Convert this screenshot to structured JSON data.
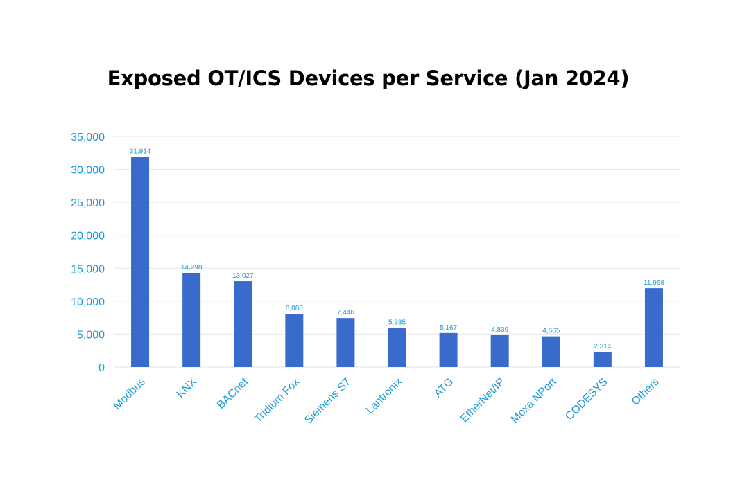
{
  "chart_data": {
    "type": "bar",
    "title": "Exposed OT/ICS Devices per Service (Jan 2024)",
    "xlabel": "",
    "ylabel": "",
    "ylim": [
      0,
      35000
    ],
    "yticks": [
      "0",
      "5,000",
      "10,000",
      "15,000",
      "20,000",
      "25,000",
      "30,000",
      "35,000"
    ],
    "ytick_values": [
      0,
      5000,
      10000,
      15000,
      20000,
      25000,
      30000,
      35000
    ],
    "grid": true,
    "categories": [
      "Modbus",
      "KNX",
      "BACnet",
      "Tridium Fox",
      "Siemens S7",
      "Lantronix",
      "ATG",
      "EtherNet/IP",
      "Moxa NPort",
      "CODESYS",
      "Others"
    ],
    "values": [
      31914,
      14298,
      13027,
      8080,
      7446,
      5935,
      5167,
      4839,
      4665,
      2314,
      11968
    ],
    "data_labels": [
      "31,914",
      "14,298",
      "13,027",
      "8,080",
      "7,446",
      "5,935",
      "5,167",
      "4,839",
      "4,665",
      "2,314",
      "11,968"
    ],
    "colors": {
      "bar": "#386bcc",
      "axis_text": "#1a9ad6",
      "grid": "#e6e6e6"
    }
  }
}
